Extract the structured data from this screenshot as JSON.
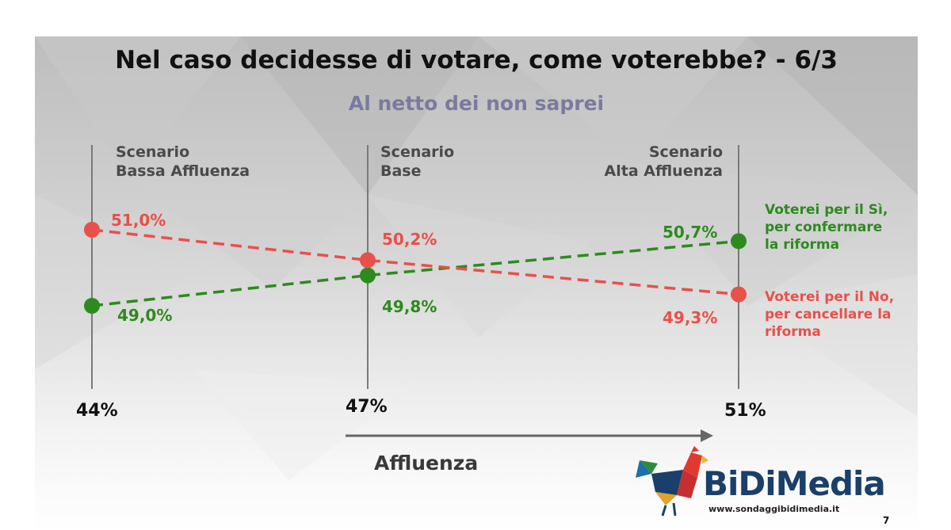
{
  "title": "Nel caso decidesse di votare, come voterebbe? - 6/3",
  "subtitle": "Al netto dei non saprei",
  "chart_data": {
    "type": "line",
    "x_categories": [
      "Scenario\nBassa Affluenza",
      "Scenario\nBase",
      "Scenario\nAlta Affluenza"
    ],
    "turnout": [
      "44%",
      "47%",
      "51%"
    ],
    "xlabel": "Affluenza",
    "series": [
      {
        "name": "Voterei per il Sì,\nper confermare\nla riforma",
        "color": "#2d8a1e",
        "values": [
          49.0,
          49.8,
          50.7
        ],
        "labels": [
          "49,0%",
          "49,8%",
          "50,7%"
        ]
      },
      {
        "name": "Voterei per il No,\nper cancellare la\nriforma",
        "color": "#e8504a",
        "values": [
          51.0,
          50.2,
          49.3
        ],
        "labels": [
          "51,0%",
          "50,2%",
          "49,3%"
        ]
      }
    ],
    "legend_position": "right"
  },
  "brand": {
    "name": "BiDiMedia",
    "website": "www.sondaggibidimedia.it"
  },
  "page_number": "7"
}
